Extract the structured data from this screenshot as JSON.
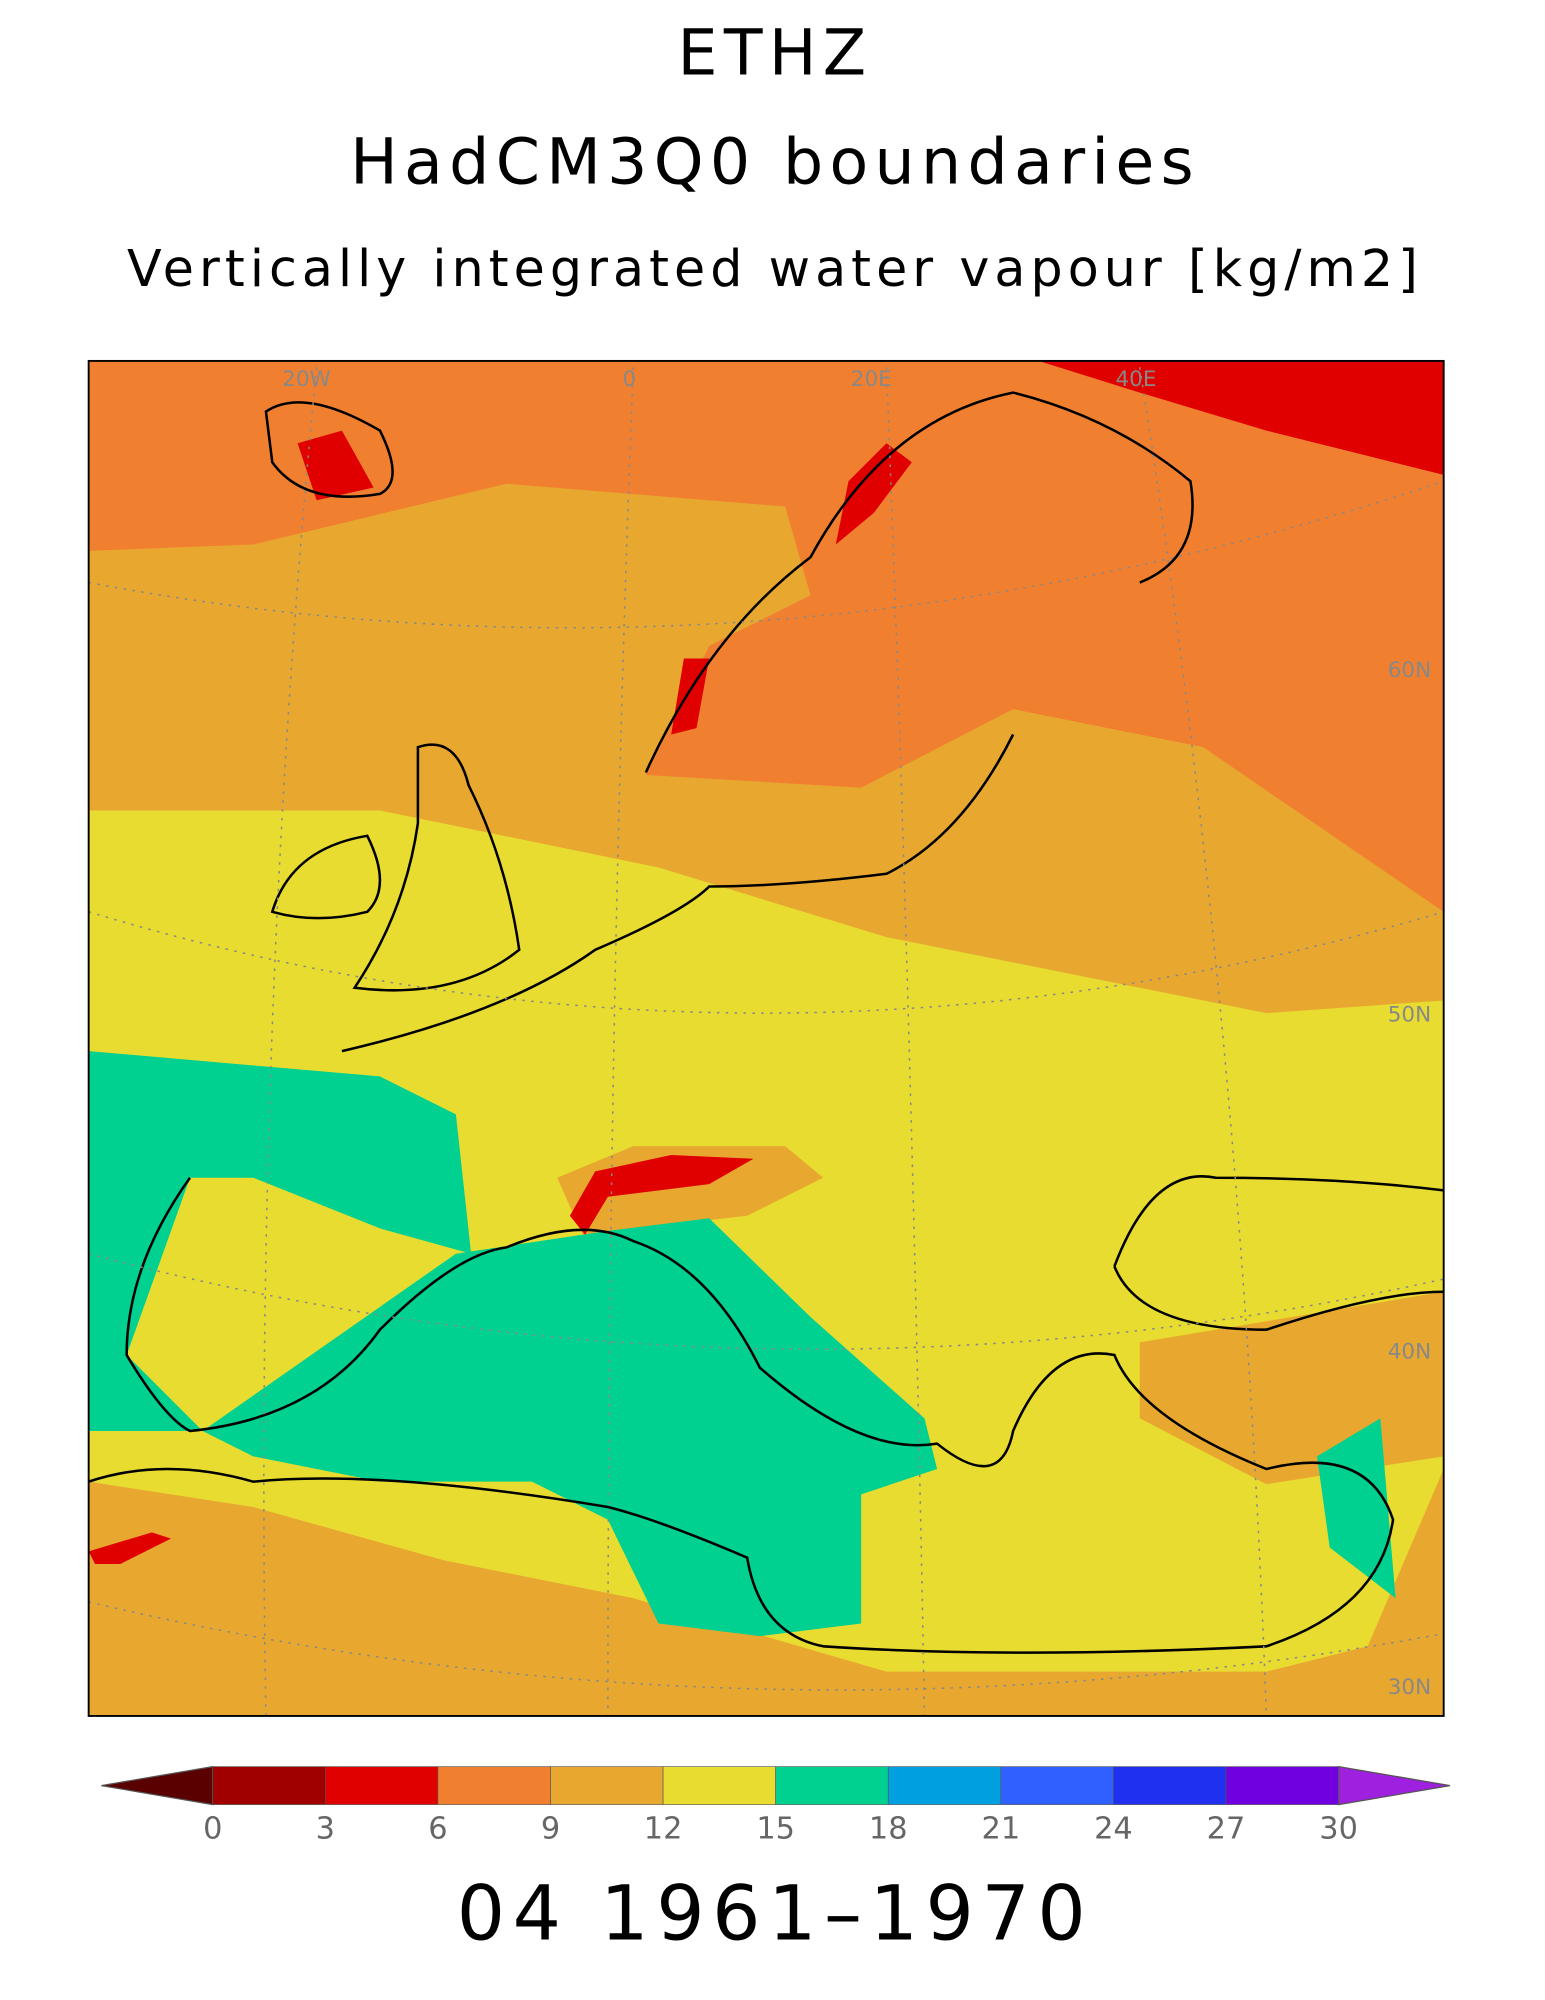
{
  "titles": [
    "ETHZ",
    "HadCM3Q0 boundaries",
    "Vertically integrated water vapour [kg/m2]"
  ],
  "map": {
    "lon_labels": [
      "20W",
      "0",
      "20E",
      "40E"
    ],
    "lat_labels": [
      "60N",
      "50N",
      "40N",
      "30N"
    ]
  },
  "colorbar": {
    "levels": [
      0,
      3,
      6,
      9,
      12,
      15,
      18,
      21,
      24,
      27,
      30
    ],
    "colors": [
      "#5a0000",
      "#a00000",
      "#e00000",
      "#f08030",
      "#e8a830",
      "#e8dc30",
      "#00d090",
      "#00a0e0",
      "#3060ff",
      "#2030f0",
      "#7000e0",
      "#a020e0"
    ]
  },
  "footer": "04 1961–1970"
}
